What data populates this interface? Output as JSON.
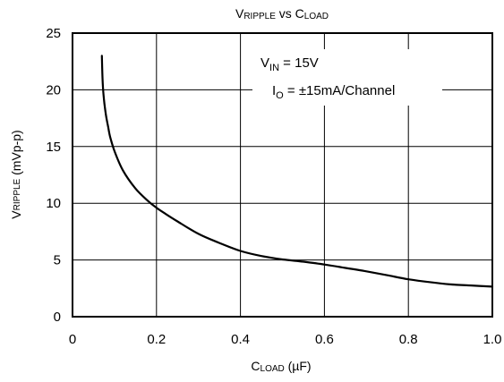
{
  "chart_data": {
    "type": "line",
    "title": {
      "main": "V",
      "main_sub": "RIPPLE",
      "mid": " vs C",
      "load_sub": "LOAD"
    },
    "xlabel": {
      "main": "C",
      "sub": "LOAD",
      "unit": " (µF)"
    },
    "ylabel": {
      "main": "V",
      "sub": "RIPPLE",
      "unit": " (mVp-p)"
    },
    "xlim": [
      0,
      1.0
    ],
    "ylim": [
      0,
      25
    ],
    "x_ticks": [
      "0",
      "0.2",
      "0.4",
      "0.6",
      "0.8",
      "1.0"
    ],
    "y_ticks": [
      "0",
      "5",
      "10",
      "15",
      "20",
      "25"
    ],
    "x_tick_values": [
      0,
      0.2,
      0.4,
      0.6,
      0.8,
      1.0
    ],
    "y_tick_values": [
      0,
      5,
      10,
      15,
      20,
      25
    ],
    "grid": true,
    "annotations": [
      {
        "main": "V",
        "sub": "IN",
        "rest": " = 15V"
      },
      {
        "main": "I",
        "sub": "O",
        "rest": " = ±15mA/Channel"
      }
    ],
    "series": [
      {
        "x": [
          0.07,
          0.071,
          0.073,
          0.076,
          0.08,
          0.085,
          0.09,
          0.1,
          0.12,
          0.15,
          0.18,
          0.2,
          0.22,
          0.25,
          0.3,
          0.35,
          0.4,
          0.45,
          0.5,
          0.55,
          0.6,
          0.65,
          0.7,
          0.75,
          0.8,
          0.85,
          0.9,
          0.95,
          1.0
        ],
        "y": [
          23.0,
          21.5,
          20.0,
          18.8,
          17.7,
          16.7,
          15.8,
          14.6,
          12.9,
          11.3,
          10.2,
          9.6,
          9.1,
          8.4,
          7.3,
          6.5,
          5.8,
          5.35,
          5.05,
          4.85,
          4.6,
          4.3,
          4.0,
          3.65,
          3.3,
          3.05,
          2.85,
          2.75,
          2.65
        ]
      }
    ]
  }
}
